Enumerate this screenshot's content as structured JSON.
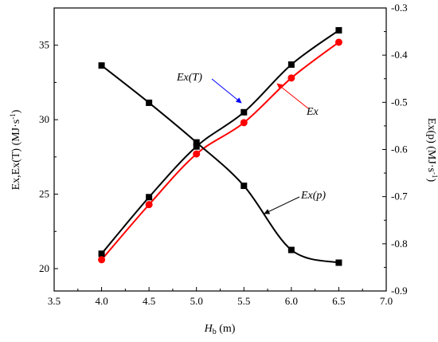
{
  "chart_data": {
    "type": "line",
    "x": [
      4.0,
      4.5,
      5.0,
      5.5,
      6.0,
      6.5
    ],
    "x_ticks": [
      "3.5",
      "4.0",
      "4.5",
      "5.0",
      "5.5",
      "6.0",
      "6.5",
      "7.0"
    ],
    "xlim": [
      3.5,
      7.0
    ],
    "ylim_left": [
      18.5,
      37.5
    ],
    "left_ticks": [
      "20",
      "25",
      "30",
      "35"
    ],
    "ylim_right": [
      -0.9,
      -0.3
    ],
    "right_ticks": [
      "-0.9",
      "-0.8",
      "-0.7",
      "-0.6",
      "-0.5",
      "-0.4",
      "-0.3"
    ],
    "xlabel": {
      "main": "H",
      "sub": "b",
      "unit": " (m)"
    },
    "ylabel_left": {
      "text": "Ex,Ex(T) (MJ·s",
      "sup": "-1",
      "close": ")"
    },
    "ylabel_right": {
      "text": "Ex(p) (MJ·s",
      "sup": "-1",
      "close": ")"
    },
    "series": [
      {
        "name": "Ex(T)",
        "axis": "left",
        "marker": "square",
        "color": "#000000",
        "values": [
          21.0,
          24.8,
          28.2,
          30.5,
          33.7,
          36.0
        ]
      },
      {
        "name": "Ex",
        "axis": "left",
        "marker": "circle",
        "color": "#ff0000",
        "values": [
          20.6,
          24.3,
          27.7,
          29.8,
          32.8,
          35.2
        ]
      },
      {
        "name": "Ex(p)",
        "axis": "right",
        "marker": "square",
        "color": "#000000",
        "values": [
          -0.422,
          -0.501,
          -0.585,
          -0.677,
          -0.813,
          -0.84
        ]
      }
    ],
    "annotations": [
      {
        "text": "Ex(T)",
        "arrow_color": "#0000ff"
      },
      {
        "text": "Ex",
        "arrow_color": "#ff0000"
      },
      {
        "text": "Ex(p)",
        "arrow_color": "#000000"
      }
    ]
  }
}
